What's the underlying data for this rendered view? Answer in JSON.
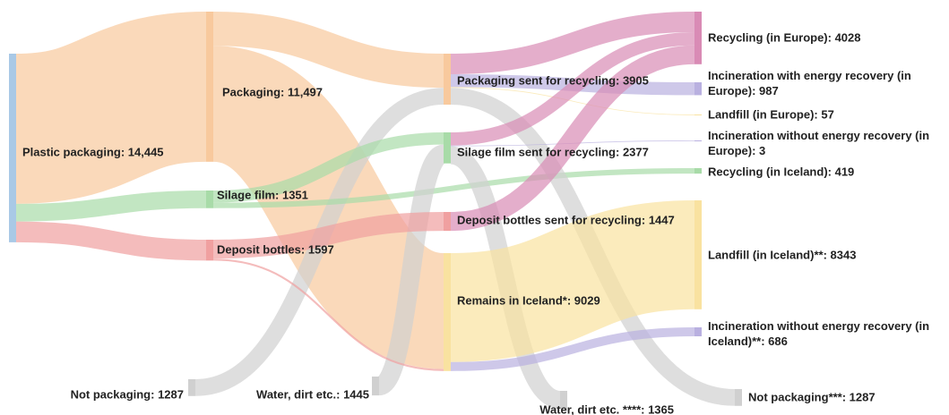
{
  "chart_data": {
    "type": "sankey",
    "nodes": [
      {
        "label": "Plastic packaging: 14,445",
        "value": 14445,
        "color": "#a9c9e6"
      },
      {
        "label": "Packaging: 11,497",
        "value": 11497,
        "color": "#f8c99d"
      },
      {
        "label": "Silage film: 1351",
        "value": 1351,
        "color": "#a8dba8"
      },
      {
        "label": "Deposit bottles: 1597",
        "value": 1597,
        "color": "#f0a0a0"
      },
      {
        "label": "Not packaging: 1287",
        "value": 1287,
        "color": "#d0d0d0"
      },
      {
        "label": "Water, dirt etc.: 1445",
        "value": 1445,
        "color": "#d0d0d0"
      },
      {
        "label": "Packaging sent for recycling: 3905",
        "value": 3905,
        "color": "#f8c99d"
      },
      {
        "label": "Silage film sent for recycling: 2377",
        "value": 2377,
        "color": "#a8dba8"
      },
      {
        "label": "Deposit bottles sent for recycling: 1447",
        "value": 1447,
        "color": "#f0a0a0"
      },
      {
        "label": "Remains in Iceland*: 9029",
        "value": 9029,
        "color": "#f9e2a0"
      },
      {
        "label": "Recycling (in Europe): 4028",
        "value": 4028,
        "color": "#d98bb5"
      },
      {
        "label": "Incineration with energy recovery (in Europe): 987",
        "value": 987,
        "color": "#b9b0e0"
      },
      {
        "label": "Landfill (in Europe): 57",
        "value": 57,
        "color": "#f9e2a0"
      },
      {
        "label": "Incineration without energy recovery (in Europe): 3",
        "value": 3,
        "color": "#b9b0e0"
      },
      {
        "label": "Recycling (in Iceland): 419",
        "value": 419,
        "color": "#a8dba8"
      },
      {
        "label": "Landfill (in Iceland)**: 8343",
        "value": 8343,
        "color": "#f9e2a0"
      },
      {
        "label": "Incineration without energy recovery (in Iceland)**: 686",
        "value": 686,
        "color": "#b9b0e0"
      },
      {
        "label": "Water, dirt etc. ****: 1365",
        "value": 1365,
        "color": "#d0d0d0"
      },
      {
        "label": "Not packaging***: 1287",
        "value": 1287,
        "color": "#d0d0d0"
      }
    ],
    "links": [
      {
        "source": 0,
        "target": 1,
        "value": 11497,
        "color": "#f8c99d"
      },
      {
        "source": 0,
        "target": 2,
        "value": 1351,
        "color": "#a8dba8"
      },
      {
        "source": 0,
        "target": 3,
        "value": 1597,
        "color": "#f0a0a0"
      },
      {
        "source": 1,
        "target": 6,
        "value": 2618,
        "color": "#f8c99d"
      },
      {
        "source": 1,
        "target": 9,
        "value": 8879,
        "color": "#f8c99d"
      },
      {
        "source": 4,
        "target": 6,
        "value": 1287,
        "color": "#d0d0d0"
      },
      {
        "source": 2,
        "target": 7,
        "value": 932,
        "color": "#a8dba8"
      },
      {
        "source": 2,
        "target": 14,
        "value": 419,
        "color": "#a8dba8"
      },
      {
        "source": 5,
        "target": 7,
        "value": 1445,
        "color": "#d0d0d0"
      },
      {
        "source": 3,
        "target": 8,
        "value": 1447,
        "color": "#f0a0a0"
      },
      {
        "source": 3,
        "target": 9,
        "value": 150,
        "color": "#f0a0a0"
      },
      {
        "source": 6,
        "target": 10,
        "value": 1574,
        "color": "#d98bb5"
      },
      {
        "source": 6,
        "target": 11,
        "value": 987,
        "color": "#b9b0e0"
      },
      {
        "source": 6,
        "target": 12,
        "value": 57,
        "color": "#f9e2a0"
      },
      {
        "source": 6,
        "target": 18,
        "value": 1287,
        "color": "#d0d0d0"
      },
      {
        "source": 7,
        "target": 10,
        "value": 1009,
        "color": "#d98bb5"
      },
      {
        "source": 7,
        "target": 13,
        "value": 3,
        "color": "#b9b0e0"
      },
      {
        "source": 7,
        "target": 17,
        "value": 1365,
        "color": "#d0d0d0"
      },
      {
        "source": 8,
        "target": 10,
        "value": 1447,
        "color": "#d98bb5"
      },
      {
        "source": 9,
        "target": 15,
        "value": 8343,
        "color": "#f9e2a0"
      },
      {
        "source": 9,
        "target": 16,
        "value": 686,
        "color": "#b9b0e0"
      }
    ]
  }
}
